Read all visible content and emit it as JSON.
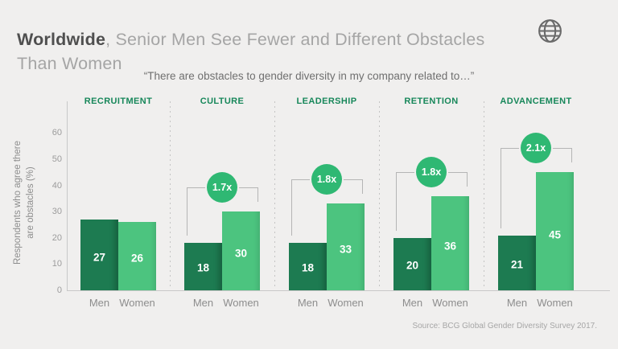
{
  "header": {
    "title_bold": "Worldwide",
    "title_rest": ", Senior Men See Fewer and Different Obstacles",
    "title_line2": "Than Women"
  },
  "quote": "“There are obstacles to gender diversity in my company related to…”",
  "y_axis": {
    "label_lines": [
      "Respondents who agree there",
      "are obstacles (%)"
    ]
  },
  "source": "Source: BCG Global Gender Diversity Survey 2017.",
  "chart_data": {
    "type": "bar",
    "categories": [
      "RECRUITMENT",
      "CULTURE",
      "LEADERSHIP",
      "RETENTION",
      "ADVANCEMENT"
    ],
    "series": [
      {
        "name": "Men",
        "values": [
          27,
          18,
          18,
          20,
          21
        ]
      },
      {
        "name": "Women",
        "values": [
          26,
          30,
          33,
          36,
          45
        ]
      }
    ],
    "multipliers": [
      null,
      "1.7x",
      "1.8x",
      "1.8x",
      "2.1x"
    ],
    "title": "There are obstacles to gender diversity in my company related to…",
    "xlabel": "",
    "ylabel": "Respondents who agree there are obstacles (%)",
    "ylim": [
      0,
      60
    ],
    "yticks": [
      0,
      10,
      20,
      30,
      40,
      50,
      60
    ],
    "grid": false,
    "bar_value_labels": true,
    "legend_position": "below-each-bar"
  },
  "colors": {
    "background": "#f0efee",
    "men_bar": "#1d7b51",
    "women_bar": "#4cc47f",
    "badge": "#2fb873",
    "category_label": "#17875a",
    "title_bold": "#4f4f4f",
    "title_light": "#a5a5a5",
    "quote_text": "#6f6f6f",
    "axis_line": "#c8c8c8",
    "bracket_line": "#b5b5b5",
    "gray_text": "#8d8d8d",
    "globe_icon": "#6a6a6a"
  }
}
